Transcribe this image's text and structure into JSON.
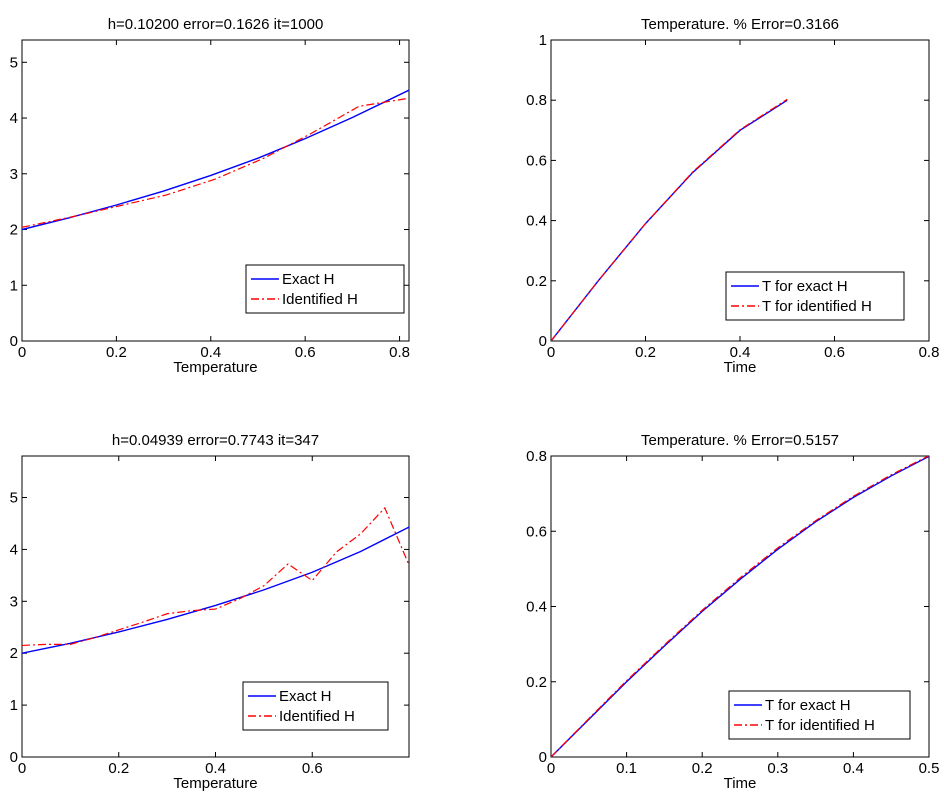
{
  "chart_data": [
    {
      "type": "line",
      "title": "h=0.10200  error=0.1626  it=1000",
      "xlabel": "Temperature",
      "ylabel": "",
      "xlim": [
        0,
        0.82
      ],
      "ylim": [
        0,
        5.4
      ],
      "xticks": [
        0,
        0.2,
        0.4,
        0.6,
        0.8
      ],
      "xtick_labels": [
        "0",
        "0.2",
        "0.4",
        "0.6",
        "0.8"
      ],
      "yticks": [
        0,
        1,
        2,
        3,
        4,
        5
      ],
      "ytick_labels": [
        "0",
        "1",
        "2",
        "3",
        "4",
        "5"
      ],
      "legend_position": "bottom-right",
      "series": [
        {
          "name": "Exact H",
          "color": "#0000ff",
          "dash": "solid",
          "x": [
            0,
            0.1,
            0.2,
            0.3,
            0.4,
            0.5,
            0.6,
            0.7,
            0.82
          ],
          "y": [
            2.0,
            2.21,
            2.44,
            2.69,
            2.97,
            3.28,
            3.63,
            4.01,
            4.5
          ]
        },
        {
          "name": "Identified H",
          "color": "#ff0000",
          "dash": "dashdot",
          "x": [
            0,
            0.102,
            0.204,
            0.306,
            0.408,
            0.51,
            0.612,
            0.714,
            0.816
          ],
          "y": [
            2.04,
            2.22,
            2.42,
            2.62,
            2.9,
            3.27,
            3.72,
            4.21,
            4.35
          ]
        }
      ]
    },
    {
      "type": "line",
      "title": "Temperature. % Error=0.3166",
      "xlabel": "Time",
      "ylabel": "",
      "xlim": [
        0,
        0.8
      ],
      "ylim": [
        0,
        1
      ],
      "xticks": [
        0,
        0.2,
        0.4,
        0.6,
        0.8
      ],
      "xtick_labels": [
        "0",
        "0.2",
        "0.4",
        "0.6",
        "0.8"
      ],
      "yticks": [
        0,
        0.2,
        0.4,
        0.6,
        0.8,
        1
      ],
      "ytick_labels": [
        "0",
        "0.2",
        "0.4",
        "0.6",
        "0.8",
        "1"
      ],
      "legend_position": "bottom-right",
      "series": [
        {
          "name": "T for exact H",
          "color": "#0000ff",
          "dash": "solid",
          "x": [
            0,
            0.1,
            0.2,
            0.3,
            0.4,
            0.5
          ],
          "y": [
            0,
            0.2,
            0.39,
            0.56,
            0.7,
            0.8
          ]
        },
        {
          "name": "T for identified H",
          "color": "#ff0000",
          "dash": "dashdot",
          "x": [
            0,
            0.1,
            0.2,
            0.3,
            0.4,
            0.5
          ],
          "y": [
            0,
            0.2,
            0.39,
            0.562,
            0.702,
            0.803
          ]
        }
      ]
    },
    {
      "type": "line",
      "title": "h=0.04939  error=0.7743  it=347",
      "xlabel": "Temperature",
      "ylabel": "",
      "xlim": [
        0,
        0.8
      ],
      "ylim": [
        0,
        5.8
      ],
      "xticks": [
        0,
        0.2,
        0.4,
        0.6
      ],
      "xtick_labels": [
        "0",
        "0.2",
        "0.4",
        "0.6"
      ],
      "yticks": [
        0,
        1,
        2,
        3,
        4,
        5
      ],
      "ytick_labels": [
        "0",
        "1",
        "2",
        "3",
        "4",
        "5"
      ],
      "legend_position": "bottom-right",
      "series": [
        {
          "name": "Exact H",
          "color": "#0000ff",
          "dash": "solid",
          "x": [
            0,
            0.1,
            0.2,
            0.3,
            0.4,
            0.5,
            0.6,
            0.7,
            0.8
          ],
          "y": [
            2.0,
            2.19,
            2.41,
            2.65,
            2.92,
            3.22,
            3.56,
            3.96,
            4.43
          ]
        },
        {
          "name": "Identified H",
          "color": "#ff0000",
          "dash": "dashdot",
          "x": [
            0,
            0.05,
            0.1,
            0.15,
            0.2,
            0.25,
            0.3,
            0.35,
            0.4,
            0.45,
            0.5,
            0.55,
            0.6,
            0.65,
            0.7,
            0.75,
            0.8
          ],
          "y": [
            2.15,
            2.17,
            2.17,
            2.3,
            2.45,
            2.6,
            2.76,
            2.82,
            2.85,
            3.05,
            3.3,
            3.72,
            3.4,
            3.95,
            4.3,
            4.8,
            3.7
          ]
        }
      ]
    },
    {
      "type": "line",
      "title": "Temperature. % Error=0.5157",
      "xlabel": "Time",
      "ylabel": "",
      "xlim": [
        0,
        0.5
      ],
      "ylim": [
        0,
        0.8
      ],
      "xticks": [
        0,
        0.1,
        0.2,
        0.3,
        0.4,
        0.5
      ],
      "xtick_labels": [
        "0",
        "0.1",
        "0.2",
        "0.3",
        "0.4",
        "0.5"
      ],
      "yticks": [
        0,
        0.2,
        0.4,
        0.6,
        0.8
      ],
      "ytick_labels": [
        "0",
        "0.2",
        "0.4",
        "0.6",
        "0.8"
      ],
      "legend_position": "bottom-right",
      "series": [
        {
          "name": "T for exact H",
          "color": "#0000ff",
          "dash": "solid",
          "x": [
            0,
            0.05,
            0.1,
            0.15,
            0.2,
            0.25,
            0.3,
            0.35,
            0.4,
            0.45,
            0.5
          ],
          "y": [
            0,
            0.1,
            0.2,
            0.295,
            0.387,
            0.472,
            0.552,
            0.625,
            0.69,
            0.747,
            0.799
          ]
        },
        {
          "name": "T for identified H",
          "color": "#ff0000",
          "dash": "dashdot",
          "x": [
            0,
            0.05,
            0.1,
            0.15,
            0.2,
            0.25,
            0.3,
            0.35,
            0.4,
            0.45,
            0.5
          ],
          "y": [
            0,
            0.102,
            0.203,
            0.298,
            0.39,
            0.476,
            0.556,
            0.628,
            0.693,
            0.75,
            0.801
          ]
        }
      ]
    }
  ]
}
